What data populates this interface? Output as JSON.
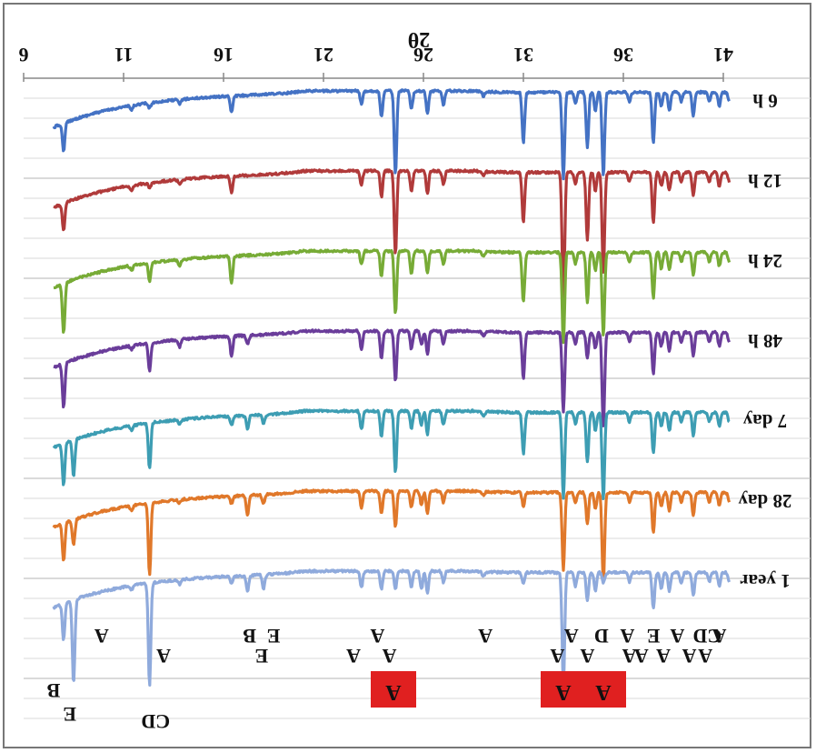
{
  "chart_data": {
    "type": "line",
    "title": "",
    "xlabel": "2θ",
    "ylabel": "",
    "x_axis_orientation": "reversed",
    "xlim": [
      6,
      41
    ],
    "x_ticks": [
      6,
      11,
      16,
      21,
      26,
      31,
      36,
      41
    ],
    "x_tick_labels": [
      "6",
      "11",
      "16",
      "21",
      "26",
      "31",
      "36",
      "41"
    ],
    "grid": "horizontal",
    "peaks": [
      {
        "x": 8.0,
        "depths": [
          30,
          30,
          55,
          48,
          45,
          42,
          40
        ]
      },
      {
        "x": 8.5,
        "depths": [
          0,
          0,
          0,
          0,
          40,
          28,
          92
        ]
      },
      {
        "x": 11.4,
        "depths": [
          5,
          5,
          5,
          4,
          5,
          5,
          4
        ]
      },
      {
        "x": 12.3,
        "depths": [
          6,
          6,
          20,
          30,
          50,
          80,
          112
        ]
      },
      {
        "x": 13.8,
        "depths": [
          5,
          5,
          8,
          8,
          5,
          4,
          5
        ]
      },
      {
        "x": 16.4,
        "depths": [
          18,
          18,
          30,
          22,
          10,
          8,
          8
        ]
      },
      {
        "x": 17.2,
        "depths": [
          0,
          0,
          0,
          10,
          15,
          22,
          18
        ]
      },
      {
        "x": 18.0,
        "depths": [
          0,
          0,
          0,
          0,
          10,
          10,
          15
        ]
      },
      {
        "x": 22.9,
        "depths": [
          15,
          15,
          15,
          20,
          20,
          18,
          18
        ]
      },
      {
        "x": 23.9,
        "depths": [
          28,
          28,
          28,
          30,
          28,
          25,
          20
        ]
      },
      {
        "x": 24.6,
        "depths": [
          92,
          92,
          70,
          55,
          68,
          40,
          20
        ]
      },
      {
        "x": 25.4,
        "depths": [
          20,
          22,
          25,
          20,
          20,
          18,
          18
        ]
      },
      {
        "x": 25.9,
        "depths": [
          0,
          0,
          0,
          15,
          15,
          15,
          20
        ]
      },
      {
        "x": 26.2,
        "depths": [
          25,
          25,
          25,
          25,
          25,
          25,
          25
        ]
      },
      {
        "x": 27.0,
        "depths": [
          15,
          15,
          15,
          15,
          15,
          12,
          12
        ]
      },
      {
        "x": 29.0,
        "depths": [
          5,
          5,
          5,
          5,
          5,
          4,
          5
        ]
      },
      {
        "x": 31.0,
        "depths": [
          55,
          55,
          55,
          50,
          45,
          15,
          12
        ]
      },
      {
        "x": 33.0,
        "depths": [
          95,
          145,
          100,
          88,
          95,
          85,
          125
        ]
      },
      {
        "x": 33.6,
        "depths": [
          12,
          12,
          12,
          12,
          12,
          12,
          15
        ]
      },
      {
        "x": 34.2,
        "depths": [
          60,
          75,
          55,
          28,
          55,
          35,
          30
        ]
      },
      {
        "x": 34.6,
        "depths": [
          20,
          20,
          20,
          18,
          20,
          18,
          20
        ]
      },
      {
        "x": 35.0,
        "depths": [
          92,
          112,
          92,
          105,
          95,
          100,
          12
        ]
      },
      {
        "x": 36.3,
        "depths": [
          10,
          10,
          10,
          10,
          10,
          10,
          10
        ]
      },
      {
        "x": 37.5,
        "depths": [
          55,
          55,
          50,
          45,
          45,
          45,
          40
        ]
      },
      {
        "x": 37.9,
        "depths": [
          15,
          15,
          18,
          15,
          15,
          15,
          18
        ]
      },
      {
        "x": 38.3,
        "depths": [
          20,
          20,
          20,
          20,
          20,
          20,
          20
        ]
      },
      {
        "x": 38.9,
        "depths": [
          10,
          10,
          10,
          10,
          10,
          10,
          12
        ]
      },
      {
        "x": 39.5,
        "depths": [
          25,
          25,
          25,
          25,
          25,
          25,
          25
        ]
      },
      {
        "x": 40.3,
        "depths": [
          10,
          10,
          10,
          10,
          10,
          10,
          10
        ]
      },
      {
        "x": 40.8,
        "depths": [
          15,
          15,
          15,
          15,
          15,
          15,
          15
        ]
      },
      {
        "x": 41.3,
        "depths": [
          10,
          10,
          10,
          10,
          10,
          10,
          10
        ]
      }
    ],
    "series": [
      {
        "name": "6 h",
        "color": "#4472c4"
      },
      {
        "name": "12 h",
        "color": "#b03a3a"
      },
      {
        "name": "24 h",
        "color": "#77ab36"
      },
      {
        "name": "48 h",
        "color": "#6a3d9a"
      },
      {
        "name": "7 day",
        "color": "#3d9db3"
      },
      {
        "name": "28 day",
        "color": "#e0782a"
      },
      {
        "name": "1 year",
        "color": "#8faadc"
      }
    ],
    "annotations": [
      {
        "text": "A",
        "x": 9.9,
        "series": "1 year",
        "boxed": false
      },
      {
        "text": "A",
        "x": 13.0,
        "series": "1 year",
        "boxed": false
      },
      {
        "text": "B",
        "x": 17.3,
        "series": "1 year",
        "boxed": false
      },
      {
        "text": "E",
        "x": 17.9,
        "series": "1 year",
        "boxed": false
      },
      {
        "text": "E",
        "x": 18.5,
        "series": "1 year",
        "boxed": false
      },
      {
        "text": "A",
        "x": 22.5,
        "series": "1 year",
        "boxed": false
      },
      {
        "text": "A",
        "x": 23.7,
        "series": "1 year",
        "boxed": false
      },
      {
        "text": "A",
        "x": 24.3,
        "series": "1 year",
        "boxed": false
      },
      {
        "text": "A",
        "x": 29.1,
        "series": "1 year",
        "boxed": false
      },
      {
        "text": "A",
        "x": 32.7,
        "series": "1 year",
        "boxed": false
      },
      {
        "text": "A",
        "x": 33.4,
        "series": "1 year",
        "boxed": false
      },
      {
        "text": "A",
        "x": 34.2,
        "series": "1 year",
        "boxed": false
      },
      {
        "text": "D",
        "x": 34.9,
        "series": "1 year",
        "boxed": false
      },
      {
        "text": "A",
        "x": 36.3,
        "series": "1 year",
        "boxed": false
      },
      {
        "text": "A",
        "x": 36.2,
        "series": "1 year",
        "boxed": false
      },
      {
        "text": "A",
        "x": 36.9,
        "series": "1 year",
        "boxed": false
      },
      {
        "text": "E",
        "x": 37.5,
        "series": "1 year",
        "boxed": false
      },
      {
        "text": "A",
        "x": 38.0,
        "series": "1 year",
        "boxed": false
      },
      {
        "text": "A",
        "x": 38.7,
        "series": "1 year",
        "boxed": false
      },
      {
        "text": "A",
        "x": 39.3,
        "series": "1 year",
        "boxed": false
      },
      {
        "text": "CD",
        "x": 40.2,
        "series": "1 year",
        "boxed": false
      },
      {
        "text": "A",
        "x": 40.1,
        "series": "1 year",
        "boxed": false
      },
      {
        "text": "A",
        "x": 40.8,
        "series": "1 year",
        "boxed": false
      },
      {
        "text": "B",
        "x": 7.5,
        "series": "1 year",
        "boxed": false
      },
      {
        "text": "E",
        "x": 8.3,
        "series": "1 year",
        "boxed": false
      },
      {
        "text": "CD",
        "x": 12.6,
        "series": "1 year",
        "boxed": false
      },
      {
        "text": "CD",
        "x": 24.9,
        "series": "1 year",
        "boxed": false
      },
      {
        "text": "E",
        "x": 32.6,
        "series": "1 year",
        "boxed": false
      },
      {
        "text": "A",
        "x": 24.5,
        "series": "1 year",
        "boxed": true
      },
      {
        "text": "A",
        "x": 33.0,
        "series": "1 year",
        "boxed": true
      },
      {
        "text": "A",
        "x": 35.0,
        "series": "1 year",
        "boxed": true
      }
    ]
  }
}
